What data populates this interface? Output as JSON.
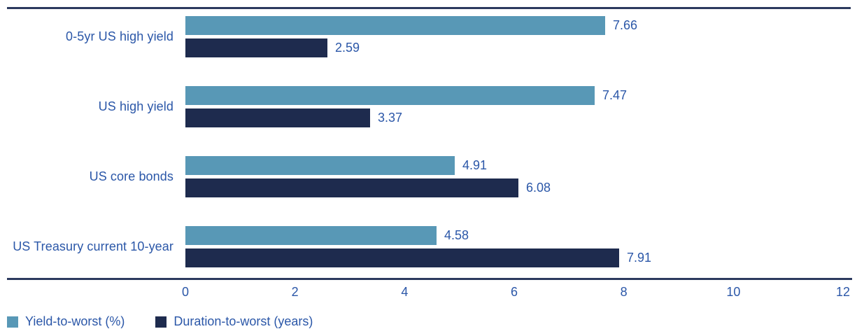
{
  "colors": {
    "series1": "#5898b6",
    "series2": "#1e2b4e",
    "rule": "#2c3a5e",
    "text": "#2b57a8"
  },
  "chart_data": {
    "type": "bar",
    "orientation": "horizontal",
    "title": "",
    "categories": [
      "0-5yr US high yield",
      "US high yield",
      "US core bonds",
      "US Treasury current 10-year"
    ],
    "series": [
      {
        "name": "Yield-to-worst (%)",
        "color": "#5898b6",
        "values": [
          7.66,
          7.47,
          4.91,
          4.58
        ]
      },
      {
        "name": "Duration-to-worst (years)",
        "color": "#1e2b4e",
        "values": [
          2.59,
          3.37,
          6.08,
          7.91
        ]
      }
    ],
    "xlim": [
      0,
      12
    ],
    "x_ticks": [
      0,
      2,
      4,
      6,
      8,
      10,
      12
    ],
    "value_labels": true,
    "grid": false,
    "legend_position": "bottom-left"
  }
}
